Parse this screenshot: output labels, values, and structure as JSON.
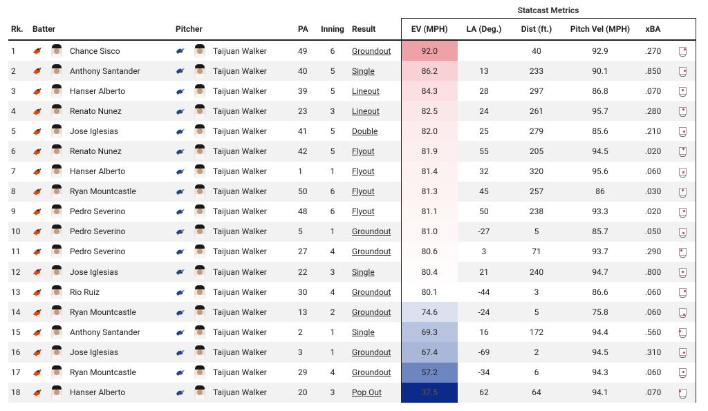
{
  "group_header": "Statcast Metrics",
  "columns": {
    "rk": "Rk.",
    "batter": "Batter",
    "pitcher": "Pitcher",
    "pa": "PA",
    "inning": "Inning",
    "result": "Result",
    "ev": "EV (MPH)",
    "la": "LA (Deg.)",
    "dist": "Dist (ft.)",
    "pitch_vel": "Pitch Vel (MPH)",
    "xba": "xBA"
  },
  "colors": {
    "ev_high": "#eea1a6",
    "ev_low": "#0b2a8c",
    "orioles": "#df4601",
    "bluejays": "#134a8e"
  },
  "rows": [
    {
      "rk": "1",
      "batter": "Chance Sisco",
      "pitcher": "Taijuan Walker",
      "pa": "49",
      "inning": "6",
      "result": "Groundout",
      "ev": "92.0",
      "la": "",
      "dist": "40",
      "pitch_vel": "92.9",
      "xba": ".270",
      "ev_bg": "#eea1a6",
      "ev_fg": "#222",
      "pt": [
        8,
        3
      ]
    },
    {
      "rk": "2",
      "batter": "Anthony Santander",
      "pitcher": "Taijuan Walker",
      "pa": "40",
      "inning": "5",
      "result": "Single",
      "ev": "86.2",
      "la": "13",
      "dist": "233",
      "pitch_vel": "90.1",
      "xba": ".850",
      "ev_bg": "#f8d1d4",
      "ev_fg": "#222",
      "pt": [
        8,
        5
      ]
    },
    {
      "rk": "3",
      "batter": "Hanser Alberto",
      "pitcher": "Taijuan Walker",
      "pa": "39",
      "inning": "5",
      "result": "Lineout",
      "ev": "84.3",
      "la": "28",
      "dist": "297",
      "pitch_vel": "86.8",
      "xba": ".070",
      "ev_bg": "#fbdfe1",
      "ev_fg": "#222",
      "pt": [
        5,
        4
      ]
    },
    {
      "rk": "4",
      "batter": "Renato Nunez",
      "pitcher": "Taijuan Walker",
      "pa": "23",
      "inning": "3",
      "result": "Lineout",
      "ev": "82.5",
      "la": "24",
      "dist": "261",
      "pitch_vel": "95.7",
      "xba": ".280",
      "ev_bg": "#fce7e8",
      "ev_fg": "#222",
      "pt": [
        6,
        3
      ]
    },
    {
      "rk": "5",
      "batter": "Jose Iglesias",
      "pitcher": "Taijuan Walker",
      "pa": "41",
      "inning": "5",
      "result": "Double",
      "ev": "82.0",
      "la": "25",
      "dist": "279",
      "pitch_vel": "85.6",
      "xba": ".210",
      "ev_bg": "#fdeced",
      "ev_fg": "#222",
      "pt": [
        7,
        6
      ]
    },
    {
      "rk": "6",
      "batter": "Renato Nunez",
      "pitcher": "Taijuan Walker",
      "pa": "42",
      "inning": "5",
      "result": "Flyout",
      "ev": "81.9",
      "la": "55",
      "dist": "205",
      "pitch_vel": "94.5",
      "xba": ".020",
      "ev_bg": "#fdeeef",
      "ev_fg": "#222",
      "pt": [
        6,
        2
      ]
    },
    {
      "rk": "7",
      "batter": "Hanser Alberto",
      "pitcher": "Taijuan Walker",
      "pa": "1",
      "inning": "1",
      "result": "Flyout",
      "ev": "81.4",
      "la": "32",
      "dist": "320",
      "pitch_vel": "95.6",
      "xba": ".060",
      "ev_bg": "#fdf1f2",
      "ev_fg": "#222",
      "pt": [
        6,
        6
      ]
    },
    {
      "rk": "8",
      "batter": "Ryan Mountcastle",
      "pitcher": "Taijuan Walker",
      "pa": "50",
      "inning": "6",
      "result": "Flyout",
      "ev": "81.3",
      "la": "45",
      "dist": "257",
      "pitch_vel": "86",
      "xba": ".030",
      "ev_bg": "#fdf3f3",
      "ev_fg": "#222",
      "pt": [
        5,
        3
      ]
    },
    {
      "rk": "9",
      "batter": "Pedro Severino",
      "pitcher": "Taijuan Walker",
      "pa": "48",
      "inning": "6",
      "result": "Flyout",
      "ev": "81.1",
      "la": "50",
      "dist": "238",
      "pitch_vel": "93.3",
      "xba": ".020",
      "ev_bg": "#fef5f5",
      "ev_fg": "#222",
      "pt": [
        7,
        4
      ]
    },
    {
      "rk": "10",
      "batter": "Pedro Severino",
      "pitcher": "Taijuan Walker",
      "pa": "5",
      "inning": "1",
      "result": "Groundout",
      "ev": "81.0",
      "la": "-27",
      "dist": "5",
      "pitch_vel": "85.7",
      "xba": ".050",
      "ev_bg": "#fef6f7",
      "ev_fg": "#222",
      "pt": [
        6,
        7
      ]
    },
    {
      "rk": "11",
      "batter": "Pedro Severino",
      "pitcher": "Taijuan Walker",
      "pa": "27",
      "inning": "4",
      "result": "Groundout",
      "ev": "80.6",
      "la": "3",
      "dist": "71",
      "pitch_vel": "93.7",
      "xba": ".290",
      "ev_bg": "#fefafa",
      "ev_fg": "#222",
      "pt": [
        3,
        3
      ]
    },
    {
      "rk": "12",
      "batter": "Jose Iglesias",
      "pitcher": "Taijuan Walker",
      "pa": "22",
      "inning": "3",
      "result": "Single",
      "ev": "80.4",
      "la": "21",
      "dist": "240",
      "pitch_vel": "94.7",
      "xba": ".800",
      "ev_bg": "#fefcfc",
      "ev_fg": "#222",
      "pt": [
        5,
        5
      ]
    },
    {
      "rk": "13",
      "batter": "Rio Ruiz",
      "pitcher": "Taijuan Walker",
      "pa": "30",
      "inning": "4",
      "result": "Groundout",
      "ev": "80.1",
      "la": "-44",
      "dist": "3",
      "pitch_vel": "86.6",
      "xba": ".060",
      "ev_bg": "#ffffff",
      "ev_fg": "#222",
      "pt": [
        8,
        4
      ]
    },
    {
      "rk": "14",
      "batter": "Ryan Mountcastle",
      "pitcher": "Taijuan Walker",
      "pa": "13",
      "inning": "2",
      "result": "Groundout",
      "ev": "74.6",
      "la": "-24",
      "dist": "5",
      "pitch_vel": "75.8",
      "xba": ".060",
      "ev_bg": "#dbe1ee",
      "ev_fg": "#222",
      "pt": [
        7,
        9
      ]
    },
    {
      "rk": "15",
      "batter": "Anthony Santander",
      "pitcher": "Taijuan Walker",
      "pa": "2",
      "inning": "1",
      "result": "Single",
      "ev": "69.3",
      "la": "16",
      "dist": "172",
      "pitch_vel": "94.4",
      "xba": ".560",
      "ev_bg": "#b7c3df",
      "ev_fg": "#222",
      "pt": [
        1,
        4
      ]
    },
    {
      "rk": "16",
      "batter": "Jose Iglesias",
      "pitcher": "Taijuan Walker",
      "pa": "3",
      "inning": "1",
      "result": "Groundout",
      "ev": "67.4",
      "la": "-69",
      "dist": "2",
      "pitch_vel": "94.5",
      "xba": ".310",
      "ev_bg": "#a9b7d8",
      "ev_fg": "#222",
      "pt": [
        7,
        6
      ]
    },
    {
      "rk": "17",
      "batter": "Ryan Mountcastle",
      "pitcher": "Taijuan Walker",
      "pa": "29",
      "inning": "4",
      "result": "Groundout",
      "ev": "57.2",
      "la": "-34",
      "dist": "6",
      "pitch_vel": "94.3",
      "xba": ".060",
      "ev_bg": "#6d86bf",
      "ev_fg": "#222",
      "pt": [
        6,
        5
      ]
    },
    {
      "rk": "18",
      "batter": "Hanser Alberto",
      "pitcher": "Taijuan Walker",
      "pa": "20",
      "inning": "3",
      "result": "Pop Out",
      "ev": "37.5",
      "la": "62",
      "dist": "64",
      "pitch_vel": "94.1",
      "xba": ".070",
      "ev_bg": "#0b2a8c",
      "ev_fg": "#6b5a2a",
      "pt": [
        1,
        3
      ]
    }
  ]
}
